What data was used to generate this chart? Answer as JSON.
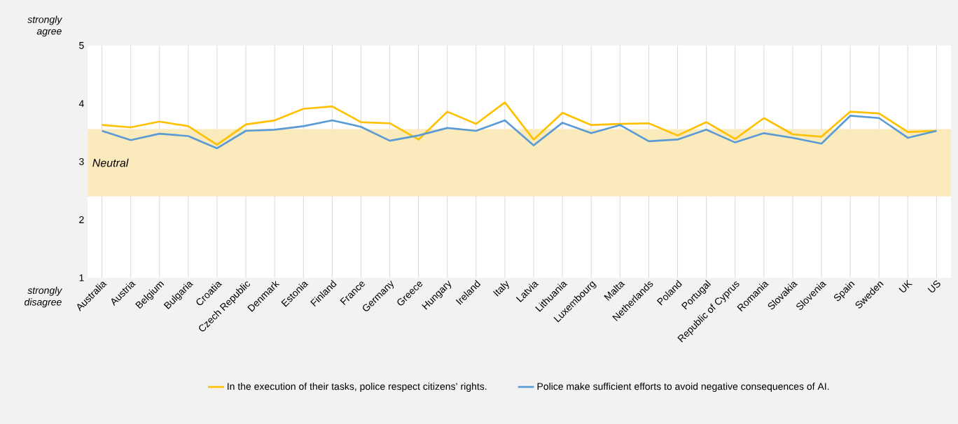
{
  "chart_data": {
    "type": "line",
    "categories": [
      "Australia",
      "Austria",
      "Belgium",
      "Bulgaria",
      "Croatia",
      "Czech Republic",
      "Denmark",
      "Estonia",
      "Finland",
      "France",
      "Germany",
      "Greece",
      "Hungary",
      "Ireland",
      "Italy",
      "Latvia",
      "Lithuania",
      "Luxembourg",
      "Malta",
      "Netherlands",
      "Poland",
      "Portugal",
      "Republic of Cyprus",
      "Romania",
      "Slovakia",
      "Slovenia",
      "Spain",
      "Sweden",
      "UK",
      "US"
    ],
    "series": [
      {
        "name": "In the execution of their tasks, police respect citizens’ rights.",
        "color": "#ffc000",
        "values": [
          3.63,
          3.59,
          3.69,
          3.61,
          3.29,
          3.64,
          3.71,
          3.91,
          3.95,
          3.68,
          3.66,
          3.38,
          3.86,
          3.65,
          4.02,
          3.38,
          3.84,
          3.63,
          3.65,
          3.66,
          3.45,
          3.68,
          3.39,
          3.75,
          3.47,
          3.43,
          3.86,
          3.83,
          3.51,
          3.53
        ]
      },
      {
        "name": "Police make sufficient efforts to avoid negative consequences of AI.",
        "color": "#5b9bd5",
        "values": [
          3.53,
          3.37,
          3.48,
          3.44,
          3.23,
          3.53,
          3.55,
          3.61,
          3.71,
          3.6,
          3.36,
          3.45,
          3.58,
          3.53,
          3.71,
          3.28,
          3.67,
          3.49,
          3.63,
          3.35,
          3.38,
          3.55,
          3.33,
          3.49,
          3.41,
          3.31,
          3.79,
          3.75,
          3.41,
          3.53
        ]
      }
    ],
    "ylim": [
      1,
      5
    ],
    "yticks": [
      1,
      2,
      3,
      4,
      5
    ],
    "bands": [
      {
        "axis": "y",
        "from": 2.4,
        "to": 3.56,
        "label": "Neutral",
        "color": "#fbeabc"
      }
    ],
    "annotations": [
      "strongly agree",
      "strongly disagree"
    ],
    "grid": "x",
    "legend": "bottom",
    "marker": "none",
    "line_style": "solid"
  }
}
